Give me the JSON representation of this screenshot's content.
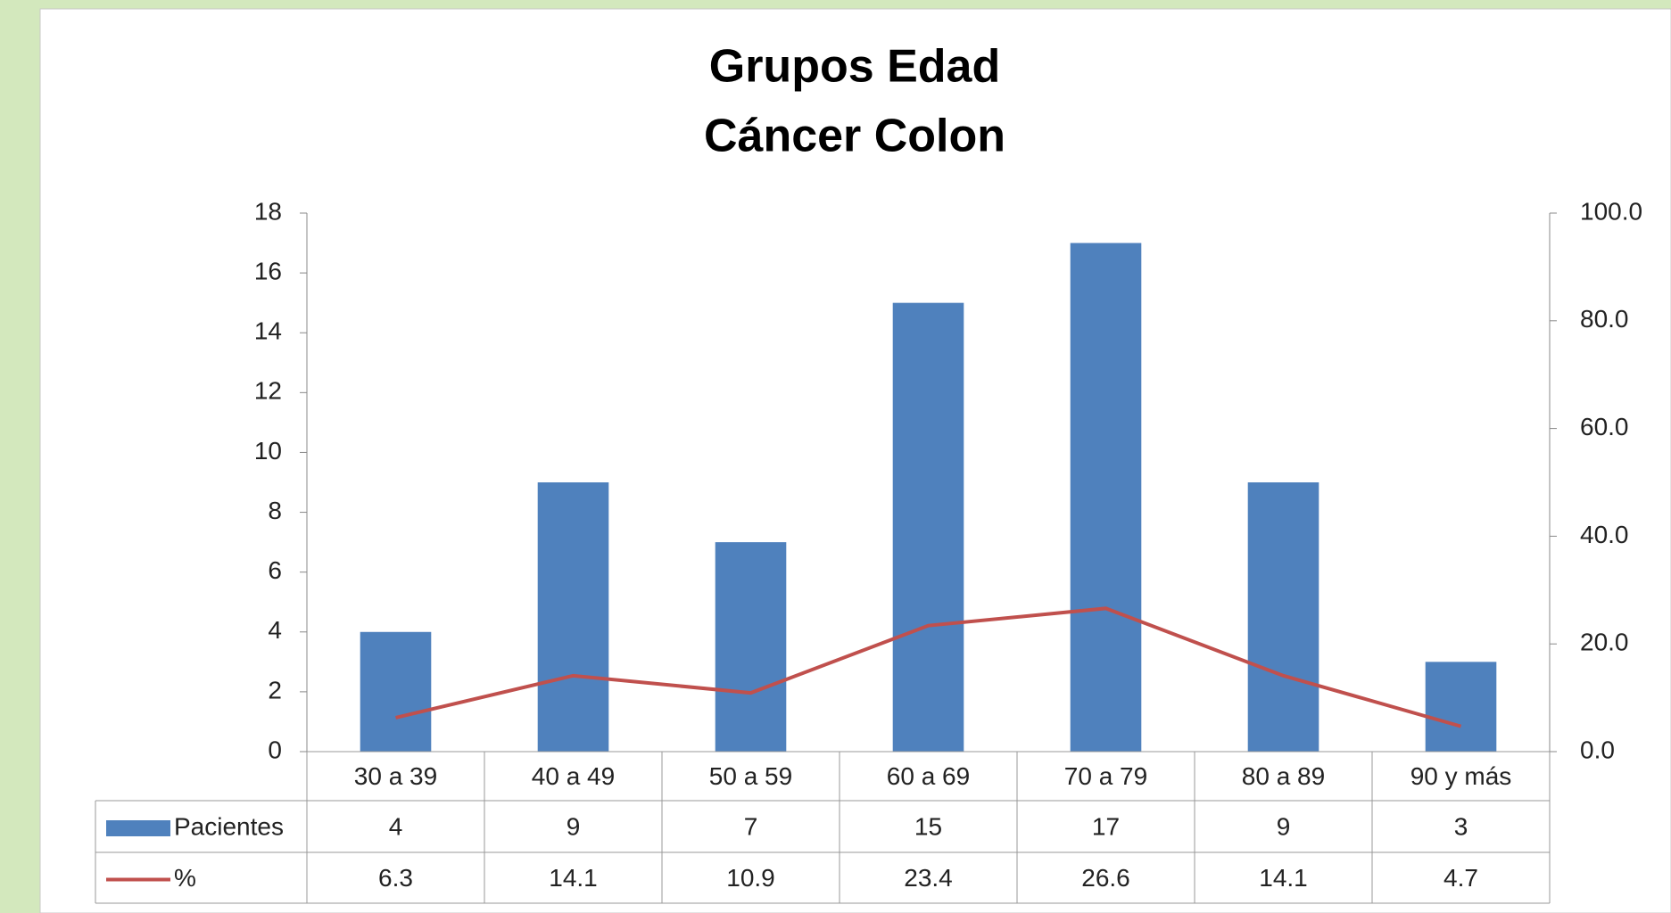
{
  "chart_data": {
    "type": "bar",
    "title": [
      "Grupos Edad",
      "Cáncer Colon"
    ],
    "categories": [
      "30 a 39",
      "40 a 49",
      "50 a 59",
      "60 a 69",
      "70 a 79",
      "80 a 89",
      "90 y más"
    ],
    "series": [
      {
        "name": "Pacientes",
        "type": "bar",
        "color": "#4f81bd",
        "values": [
          4,
          9,
          7,
          15,
          17,
          9,
          3
        ]
      },
      {
        "name": "%",
        "type": "line",
        "axis": "y2",
        "color": "#c0504d",
        "values": [
          6.3,
          14.1,
          10.9,
          23.4,
          26.6,
          14.1,
          4.7
        ]
      }
    ],
    "ylim": [
      0,
      18
    ],
    "yticks": [
      0,
      2,
      4,
      6,
      8,
      10,
      12,
      14,
      16,
      18
    ],
    "y2lim": [
      0,
      100
    ],
    "y2ticks": [
      {
        "value": 0,
        "label": "0.0"
      },
      {
        "value": 20,
        "label": "20.0"
      },
      {
        "value": 40,
        "label": "40.0"
      },
      {
        "value": 60,
        "label": "60.0"
      },
      {
        "value": 80,
        "label": "80.0"
      },
      {
        "value": 100,
        "label": "100.0"
      }
    ],
    "data_table": true
  }
}
